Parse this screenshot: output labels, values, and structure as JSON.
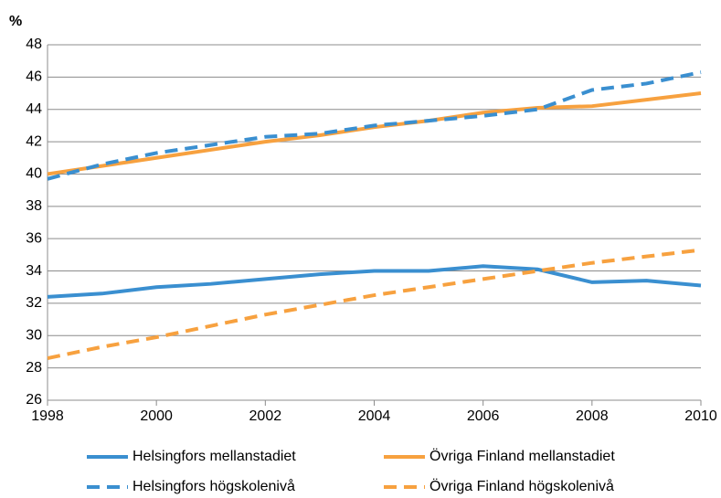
{
  "chart_data": {
    "type": "line",
    "ylabel": "%",
    "x": [
      1998,
      1999,
      2000,
      2001,
      2002,
      2003,
      2004,
      2005,
      2006,
      2007,
      2008,
      2009,
      2010
    ],
    "series": [
      {
        "name": "Helsingfors mellanstadiet",
        "color": "#3a8fd0",
        "dashed": false,
        "values": [
          32.4,
          32.6,
          33.0,
          33.2,
          33.5,
          33.8,
          34.0,
          34.0,
          34.3,
          34.1,
          33.3,
          33.4,
          33.1
        ]
      },
      {
        "name": "Övriga Finland mellanstadiet",
        "color": "#f7a13f",
        "dashed": false,
        "values": [
          40.0,
          40.5,
          41.0,
          41.5,
          42.0,
          42.4,
          42.9,
          43.3,
          43.8,
          44.1,
          44.2,
          44.6,
          45.0
        ]
      },
      {
        "name": "Helsingfors högskolenivå",
        "color": "#3a8fd0",
        "dashed": true,
        "values": [
          39.7,
          40.6,
          41.3,
          41.8,
          42.3,
          42.5,
          43.0,
          43.3,
          43.6,
          44.0,
          45.2,
          45.6,
          46.3
        ]
      },
      {
        "name": "Övriga Finland högskolenivå",
        "color": "#f7a13f",
        "dashed": true,
        "values": [
          28.6,
          29.3,
          29.9,
          30.6,
          31.3,
          31.9,
          32.5,
          33.0,
          33.5,
          34.0,
          34.5,
          34.9,
          35.3
        ]
      }
    ],
    "xlim": [
      1998,
      2010
    ],
    "xticks": [
      1998,
      2000,
      2002,
      2004,
      2006,
      2008,
      2010
    ],
    "ylim": [
      26,
      48
    ],
    "yticks": [
      26,
      28,
      30,
      32,
      34,
      36,
      38,
      40,
      42,
      44,
      46,
      48
    ],
    "grid": true
  }
}
